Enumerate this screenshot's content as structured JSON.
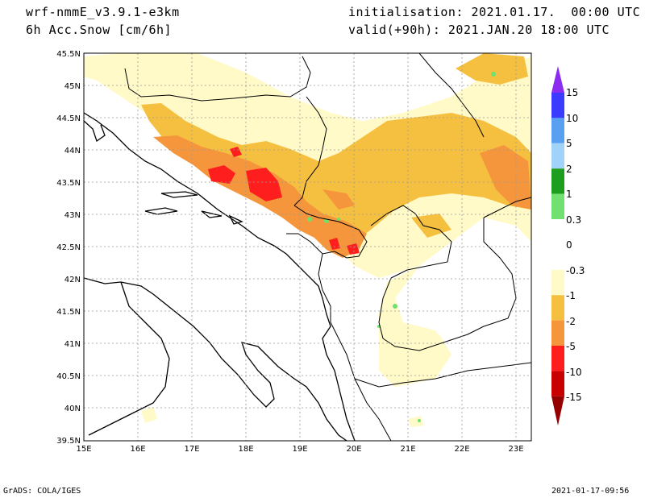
{
  "header": {
    "model": "wrf-nmmE_v3.9.1-e3km",
    "variable": "6h Acc.Snow [cm/6h]",
    "init": "initialisation: 2021.01.17.  00:00 UTC",
    "valid": "valid(+90h): 2021.JAN.20 18:00 UTC"
  },
  "footer": {
    "left": "GrADS: COLA/IGES",
    "right": "2021-01-17-09:56"
  },
  "axes": {
    "lat_labels": [
      "45.5N",
      "45N",
      "44.5N",
      "44N",
      "43.5N",
      "43N",
      "42.5N",
      "42N",
      "41.5N",
      "41N",
      "40.5N",
      "40N",
      "39.5N"
    ],
    "lon_labels": [
      "15E",
      "16E",
      "17E",
      "18E",
      "19E",
      "20E",
      "21E",
      "22E",
      "23E"
    ],
    "lat_range": [
      39.5,
      45.5
    ],
    "lon_range": [
      15,
      23.25
    ],
    "grid": true
  },
  "colorbar": {
    "labels": [
      "15",
      "10",
      "5",
      "2",
      "1",
      "0.3",
      "0",
      "-0.3",
      "-1",
      "-2",
      "-5",
      "-10",
      "-15"
    ],
    "colors": [
      "#8b2cf0",
      "#3b3bff",
      "#5aa0f0",
      "#a0d2fa",
      "#1e9e1e",
      "#70e070",
      "#ffffff",
      "#fffac8",
      "#f5c040",
      "#f5963c",
      "#ff1e1e",
      "#c80000",
      "#960000"
    ]
  },
  "map_colors": {
    "light": "#fffac8",
    "yellow": "#f5c040",
    "orange": "#f5963c",
    "red": "#ff1e1e",
    "green": "#70e070"
  }
}
